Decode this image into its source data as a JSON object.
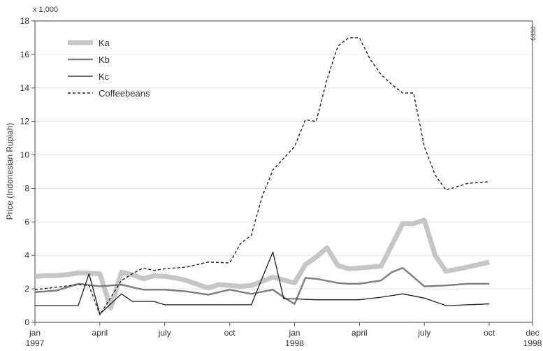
{
  "chart_data": {
    "type": "line",
    "unit_label": "x 1,000",
    "ylabel": "Price (Indonesian Rupiah)",
    "figure_code": "6336",
    "ylim": [
      0,
      18
    ],
    "yticks": [
      0,
      2,
      4,
      6,
      8,
      10,
      12,
      14,
      16,
      18
    ],
    "xlim": [
      0,
      23
    ],
    "xticks": [
      {
        "x": 0,
        "label": "jan",
        "sublabel": "1997"
      },
      {
        "x": 3,
        "label": "april",
        "sublabel": ""
      },
      {
        "x": 6,
        "label": "july",
        "sublabel": ""
      },
      {
        "x": 9,
        "label": "oct",
        "sublabel": ""
      },
      {
        "x": 12,
        "label": "jan",
        "sublabel": "1998"
      },
      {
        "x": 15,
        "label": "april",
        "sublabel": ""
      },
      {
        "x": 18,
        "label": "july",
        "sublabel": ""
      },
      {
        "x": 21,
        "label": "oct",
        "sublabel": ""
      },
      {
        "x": 23,
        "label": "dec",
        "sublabel": "1998"
      }
    ],
    "legend_position": "top-left",
    "series": [
      {
        "name": "Ka",
        "color": "#c6c6c6",
        "style": "thick",
        "points": [
          [
            0,
            2.75
          ],
          [
            0.5,
            2.78
          ],
          [
            1,
            2.8
          ],
          [
            1.5,
            2.85
          ],
          [
            2,
            2.95
          ],
          [
            2.5,
            2.93
          ],
          [
            3,
            2.9
          ],
          [
            3.5,
            0.85
          ],
          [
            4,
            3.0
          ],
          [
            4.5,
            2.85
          ],
          [
            5,
            2.6
          ],
          [
            5.5,
            2.78
          ],
          [
            6,
            2.75
          ],
          [
            6.5,
            2.65
          ],
          [
            7,
            2.5
          ],
          [
            8,
            2.05
          ],
          [
            8.5,
            2.25
          ],
          [
            9,
            2.2
          ],
          [
            9.5,
            2.15
          ],
          [
            10,
            2.2
          ],
          [
            11,
            2.7
          ],
          [
            12,
            2.35
          ],
          [
            12.5,
            3.45
          ],
          [
            13,
            3.9
          ],
          [
            13.5,
            4.45
          ],
          [
            14,
            3.4
          ],
          [
            14.5,
            3.2
          ],
          [
            15,
            3.25
          ],
          [
            16,
            3.35
          ],
          [
            17,
            5.9
          ],
          [
            17.5,
            5.9
          ],
          [
            18,
            6.1
          ],
          [
            18.5,
            4.0
          ],
          [
            19,
            3.05
          ],
          [
            20,
            3.3
          ],
          [
            21,
            3.6
          ]
        ]
      },
      {
        "name": "Kb",
        "color": "#7f7f7f",
        "style": "medium",
        "points": [
          [
            0,
            1.8
          ],
          [
            1,
            1.9
          ],
          [
            2,
            2.3
          ],
          [
            3,
            2.15
          ],
          [
            4,
            2.25
          ],
          [
            5,
            1.95
          ],
          [
            6,
            1.95
          ],
          [
            7,
            1.85
          ],
          [
            8,
            1.65
          ],
          [
            9,
            1.95
          ],
          [
            10,
            1.7
          ],
          [
            11,
            1.95
          ],
          [
            11.5,
            1.5
          ],
          [
            12,
            1.1
          ],
          [
            12.5,
            2.65
          ],
          [
            13,
            2.6
          ],
          [
            14,
            2.35
          ],
          [
            14.5,
            2.3
          ],
          [
            15,
            2.3
          ],
          [
            16,
            2.5
          ],
          [
            16.5,
            3.0
          ],
          [
            17,
            3.25
          ],
          [
            18,
            2.15
          ],
          [
            19,
            2.2
          ],
          [
            20,
            2.3
          ],
          [
            21,
            2.3
          ]
        ]
      },
      {
        "name": "Kc",
        "color": "#1e1e1e",
        "style": "thin",
        "points": [
          [
            0,
            1.0
          ],
          [
            1,
            1.0
          ],
          [
            2,
            1.0
          ],
          [
            2.5,
            2.9
          ],
          [
            3,
            0.5
          ],
          [
            4,
            1.7
          ],
          [
            4.5,
            1.25
          ],
          [
            5,
            1.25
          ],
          [
            5.5,
            1.25
          ],
          [
            6,
            1.05
          ],
          [
            7,
            1.05
          ],
          [
            8,
            1.05
          ],
          [
            9,
            1.05
          ],
          [
            10,
            1.05
          ],
          [
            11,
            4.2
          ],
          [
            11.5,
            1.4
          ],
          [
            12,
            1.4
          ],
          [
            13,
            1.35
          ],
          [
            14,
            1.35
          ],
          [
            15,
            1.35
          ],
          [
            16,
            1.5
          ],
          [
            17,
            1.7
          ],
          [
            18,
            1.45
          ],
          [
            19,
            1.0
          ],
          [
            20,
            1.05
          ],
          [
            21,
            1.1
          ]
        ]
      },
      {
        "name": "Coffeebeans",
        "color": "#1e1e1e",
        "style": "dashed",
        "points": [
          [
            0,
            1.95
          ],
          [
            1,
            2.1
          ],
          [
            2,
            2.25
          ],
          [
            2.5,
            2.2
          ],
          [
            3,
            0.45
          ],
          [
            4,
            2.5
          ],
          [
            4.5,
            2.9
          ],
          [
            5,
            3.25
          ],
          [
            5.5,
            3.1
          ],
          [
            6,
            3.2
          ],
          [
            7,
            3.3
          ],
          [
            8,
            3.6
          ],
          [
            9,
            3.55
          ],
          [
            9.5,
            4.7
          ],
          [
            10,
            5.2
          ],
          [
            10.5,
            7.5
          ],
          [
            11,
            9.1
          ],
          [
            11.5,
            9.8
          ],
          [
            12,
            10.5
          ],
          [
            12.5,
            12.1
          ],
          [
            13,
            12.0
          ],
          [
            13.5,
            14.5
          ],
          [
            14,
            16.5
          ],
          [
            14.5,
            17.0
          ],
          [
            15,
            17.0
          ],
          [
            15.5,
            15.7
          ],
          [
            16,
            14.8
          ],
          [
            16.5,
            14.2
          ],
          [
            17,
            13.7
          ],
          [
            17.5,
            13.7
          ],
          [
            18,
            10.5
          ],
          [
            18.5,
            8.8
          ],
          [
            19,
            7.9
          ],
          [
            20,
            8.3
          ],
          [
            21,
            8.4
          ]
        ]
      }
    ]
  }
}
